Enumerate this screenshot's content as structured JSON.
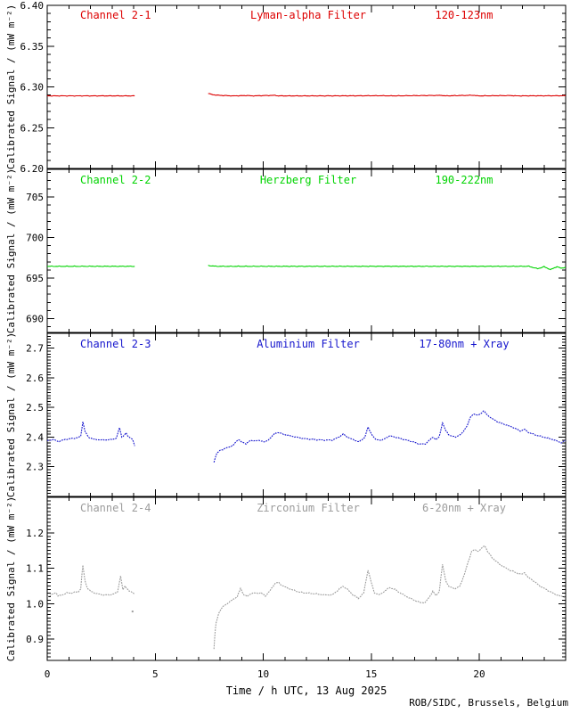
{
  "figure": {
    "background": "#ffffff",
    "axis_color": "#000000",
    "ylabel": "Calibrated Signal / (mW m⁻²)",
    "xlabel": "Time / h UTC, 13 Aug 2025",
    "credit": "ROB/SIDC, Brussels, Belgium",
    "x_axis": {
      "range": [
        0,
        24
      ],
      "major_ticks": [
        0,
        5,
        10,
        15,
        20
      ],
      "major_labels": [
        "0",
        "5",
        "10",
        "15",
        "20"
      ],
      "minor_step": 1
    }
  },
  "chart_data": [
    {
      "type": "line",
      "channel": "Channel 2-1",
      "filter": "Lyman-alpha Filter",
      "band": "120-123nm",
      "color": "#dd0000",
      "line_style": "solid",
      "noise": 0.0004,
      "ylim": [
        6.2,
        6.4
      ],
      "yticks": {
        "major": [
          6.2,
          6.25,
          6.3,
          6.35,
          6.4
        ],
        "labels": [
          "6.20",
          "6.25",
          "6.30",
          "6.35",
          "6.40"
        ],
        "minor_step": 0.01
      },
      "segments": [
        [
          [
            0,
            6.289
          ],
          [
            4.05,
            6.289
          ]
        ],
        [
          [
            7.45,
            6.292
          ],
          [
            7.6,
            6.2908
          ],
          [
            7.8,
            6.29
          ],
          [
            8.1,
            6.2895
          ],
          [
            8.6,
            6.289
          ],
          [
            9.25,
            6.2894
          ],
          [
            9.45,
            6.289
          ],
          [
            10.55,
            6.2896
          ],
          [
            10.7,
            6.289
          ],
          [
            13.0,
            6.289
          ],
          [
            15.5,
            6.2892
          ],
          [
            16.0,
            6.289
          ],
          [
            18.25,
            6.2896
          ],
          [
            18.4,
            6.289
          ],
          [
            19.75,
            6.2898
          ],
          [
            19.9,
            6.289
          ],
          [
            21.5,
            6.2894
          ],
          [
            21.7,
            6.289
          ],
          [
            24,
            6.2892
          ]
        ]
      ],
      "dots": []
    },
    {
      "type": "line",
      "channel": "Channel 2-2",
      "filter": "Herzberg Filter",
      "band": "190-222nm",
      "color": "#00d400",
      "line_style": "solid",
      "noise": 0.05,
      "ylim": [
        688.3,
        708.4
      ],
      "yticks": {
        "major": [
          690,
          695,
          700,
          705
        ],
        "labels": [
          "690",
          "695",
          "700",
          "705"
        ],
        "minor_step": 1
      },
      "segments": [
        [
          [
            0,
            696.45
          ],
          [
            4.05,
            696.45
          ]
        ],
        [
          [
            7.45,
            696.55
          ],
          [
            7.8,
            696.45
          ],
          [
            12,
            696.45
          ],
          [
            16,
            696.45
          ],
          [
            20,
            696.45
          ],
          [
            22.3,
            696.45
          ],
          [
            22.7,
            696.15
          ],
          [
            23.0,
            696.4
          ],
          [
            23.3,
            696.05
          ],
          [
            23.6,
            696.4
          ],
          [
            23.8,
            696.2
          ],
          [
            24,
            696.35
          ]
        ]
      ],
      "dots": []
    },
    {
      "type": "line",
      "channel": "Channel 2-3",
      "filter": "Aluminium Filter",
      "band": "17-80nm + Xray",
      "color": "#1515cd",
      "line_style": "dotted",
      "noise": 0.0018,
      "ylim": [
        2.2,
        2.75
      ],
      "yticks": {
        "major": [
          2.3,
          2.4,
          2.5,
          2.6,
          2.7
        ],
        "labels": [
          "2.3",
          "2.4",
          "2.5",
          "2.6",
          "2.7"
        ],
        "minor_step": 0.01
      },
      "segments": [
        [
          [
            0,
            2.388
          ],
          [
            0.3,
            2.392
          ],
          [
            0.5,
            2.385
          ],
          [
            0.8,
            2.392
          ],
          [
            1.1,
            2.395
          ],
          [
            1.4,
            2.398
          ],
          [
            1.55,
            2.402
          ],
          [
            1.65,
            2.452
          ],
          [
            1.75,
            2.42
          ],
          [
            1.9,
            2.4
          ],
          [
            2.2,
            2.392
          ],
          [
            2.6,
            2.39
          ],
          [
            3.0,
            2.392
          ],
          [
            3.2,
            2.396
          ],
          [
            3.35,
            2.432
          ],
          [
            3.45,
            2.4
          ],
          [
            3.55,
            2.405
          ],
          [
            3.65,
            2.413
          ],
          [
            3.75,
            2.402
          ],
          [
            3.85,
            2.398
          ],
          [
            3.95,
            2.392
          ],
          [
            4.05,
            2.37
          ]
        ],
        [
          [
            7.72,
            2.315
          ],
          [
            7.78,
            2.332
          ],
          [
            7.85,
            2.345
          ],
          [
            8.0,
            2.355
          ],
          [
            8.3,
            2.363
          ],
          [
            8.6,
            2.372
          ],
          [
            8.85,
            2.393
          ],
          [
            9.0,
            2.383
          ],
          [
            9.2,
            2.378
          ],
          [
            9.4,
            2.388
          ],
          [
            9.9,
            2.388
          ],
          [
            10.1,
            2.383
          ],
          [
            10.3,
            2.395
          ],
          [
            10.55,
            2.413
          ],
          [
            10.7,
            2.416
          ],
          [
            10.9,
            2.41
          ],
          [
            11.2,
            2.405
          ],
          [
            11.5,
            2.4
          ],
          [
            11.9,
            2.395
          ],
          [
            12.3,
            2.392
          ],
          [
            12.8,
            2.39
          ],
          [
            13.2,
            2.39
          ],
          [
            13.5,
            2.4
          ],
          [
            13.7,
            2.41
          ],
          [
            13.9,
            2.4
          ],
          [
            14.2,
            2.39
          ],
          [
            14.45,
            2.384
          ],
          [
            14.7,
            2.4
          ],
          [
            14.85,
            2.433
          ],
          [
            15.0,
            2.412
          ],
          [
            15.2,
            2.392
          ],
          [
            15.5,
            2.39
          ],
          [
            15.85,
            2.404
          ],
          [
            16.1,
            2.4
          ],
          [
            16.5,
            2.392
          ],
          [
            16.9,
            2.385
          ],
          [
            17.2,
            2.377
          ],
          [
            17.5,
            2.377
          ],
          [
            17.7,
            2.39
          ],
          [
            17.85,
            2.4
          ],
          [
            18.0,
            2.392
          ],
          [
            18.15,
            2.4
          ],
          [
            18.3,
            2.449
          ],
          [
            18.45,
            2.422
          ],
          [
            18.6,
            2.407
          ],
          [
            18.9,
            2.4
          ],
          [
            19.2,
            2.412
          ],
          [
            19.45,
            2.44
          ],
          [
            19.6,
            2.468
          ],
          [
            19.75,
            2.479
          ],
          [
            19.9,
            2.473
          ],
          [
            20.05,
            2.478
          ],
          [
            20.2,
            2.489
          ],
          [
            20.35,
            2.476
          ],
          [
            20.6,
            2.462
          ],
          [
            20.9,
            2.45
          ],
          [
            21.3,
            2.44
          ],
          [
            21.6,
            2.432
          ],
          [
            21.9,
            2.42
          ],
          [
            22.1,
            2.426
          ],
          [
            22.3,
            2.415
          ],
          [
            22.7,
            2.405
          ],
          [
            23.1,
            2.398
          ],
          [
            23.5,
            2.39
          ],
          [
            23.8,
            2.381
          ],
          [
            24,
            2.388
          ]
        ]
      ],
      "dots": []
    },
    {
      "type": "line",
      "channel": "Channel 2-4",
      "filter": "Zirconium Filter",
      "band": "6-20nm + Xray",
      "color": "#9c9c9c",
      "line_style": "dotted",
      "noise": 0.0018,
      "ylim": [
        0.84,
        1.3
      ],
      "yticks": {
        "major": [
          0.9,
          1.0,
          1.1,
          1.2
        ],
        "labels": [
          "0.9",
          "1.0",
          "1.1",
          "1.2"
        ],
        "minor_step": 0.01
      },
      "segments": [
        [
          [
            0,
            1.02
          ],
          [
            0.2,
            1.025
          ],
          [
            0.4,
            1.032
          ],
          [
            0.5,
            1.022
          ],
          [
            0.7,
            1.025
          ],
          [
            0.9,
            1.03
          ],
          [
            1.1,
            1.03
          ],
          [
            1.3,
            1.032
          ],
          [
            1.45,
            1.035
          ],
          [
            1.55,
            1.042
          ],
          [
            1.65,
            1.108
          ],
          [
            1.75,
            1.065
          ],
          [
            1.85,
            1.045
          ],
          [
            2.0,
            1.035
          ],
          [
            2.3,
            1.028
          ],
          [
            2.6,
            1.025
          ],
          [
            2.9,
            1.025
          ],
          [
            3.1,
            1.028
          ],
          [
            3.25,
            1.032
          ],
          [
            3.4,
            1.078
          ],
          [
            3.5,
            1.038
          ],
          [
            3.6,
            1.05
          ],
          [
            3.7,
            1.042
          ],
          [
            3.8,
            1.035
          ],
          [
            3.95,
            1.032
          ],
          [
            4.05,
            1.028
          ]
        ],
        [
          [
            7.72,
            0.872
          ],
          [
            7.75,
            0.9
          ],
          [
            7.78,
            0.925
          ],
          [
            7.82,
            0.945
          ],
          [
            7.88,
            0.96
          ],
          [
            7.95,
            0.975
          ],
          [
            8.05,
            0.985
          ],
          [
            8.2,
            0.995
          ],
          [
            8.4,
            1.003
          ],
          [
            8.6,
            1.012
          ],
          [
            8.8,
            1.02
          ],
          [
            8.95,
            1.043
          ],
          [
            9.1,
            1.025
          ],
          [
            9.25,
            1.02
          ],
          [
            9.4,
            1.028
          ],
          [
            9.6,
            1.03
          ],
          [
            9.9,
            1.03
          ],
          [
            10.1,
            1.022
          ],
          [
            10.3,
            1.035
          ],
          [
            10.55,
            1.058
          ],
          [
            10.7,
            1.06
          ],
          [
            10.85,
            1.052
          ],
          [
            11.1,
            1.045
          ],
          [
            11.4,
            1.038
          ],
          [
            11.7,
            1.032
          ],
          [
            12.0,
            1.03
          ],
          [
            12.4,
            1.028
          ],
          [
            12.8,
            1.025
          ],
          [
            13.2,
            1.025
          ],
          [
            13.5,
            1.04
          ],
          [
            13.7,
            1.05
          ],
          [
            13.9,
            1.04
          ],
          [
            14.15,
            1.025
          ],
          [
            14.4,
            1.015
          ],
          [
            14.65,
            1.03
          ],
          [
            14.85,
            1.095
          ],
          [
            15.0,
            1.06
          ],
          [
            15.15,
            1.03
          ],
          [
            15.4,
            1.025
          ],
          [
            15.6,
            1.035
          ],
          [
            15.85,
            1.045
          ],
          [
            16.1,
            1.04
          ],
          [
            16.4,
            1.028
          ],
          [
            16.7,
            1.018
          ],
          [
            17.0,
            1.01
          ],
          [
            17.25,
            1.003
          ],
          [
            17.5,
            1.003
          ],
          [
            17.7,
            1.02
          ],
          [
            17.85,
            1.035
          ],
          [
            18.0,
            1.022
          ],
          [
            18.15,
            1.035
          ],
          [
            18.3,
            1.11
          ],
          [
            18.45,
            1.065
          ],
          [
            18.6,
            1.048
          ],
          [
            18.9,
            1.042
          ],
          [
            19.1,
            1.05
          ],
          [
            19.3,
            1.08
          ],
          [
            19.5,
            1.12
          ],
          [
            19.65,
            1.148
          ],
          [
            19.8,
            1.152
          ],
          [
            19.95,
            1.148
          ],
          [
            20.1,
            1.155
          ],
          [
            20.25,
            1.165
          ],
          [
            20.4,
            1.145
          ],
          [
            20.6,
            1.13
          ],
          [
            20.8,
            1.118
          ],
          [
            21.1,
            1.105
          ],
          [
            21.4,
            1.095
          ],
          [
            21.7,
            1.088
          ],
          [
            21.95,
            1.082
          ],
          [
            22.1,
            1.088
          ],
          [
            22.25,
            1.075
          ],
          [
            22.5,
            1.065
          ],
          [
            22.8,
            1.05
          ],
          [
            23.1,
            1.04
          ],
          [
            23.4,
            1.03
          ],
          [
            23.7,
            1.022
          ],
          [
            24,
            1.018
          ]
        ]
      ],
      "dots": [
        [
          3.95,
          0.978
        ]
      ]
    }
  ]
}
